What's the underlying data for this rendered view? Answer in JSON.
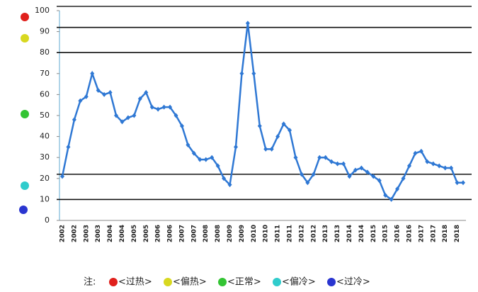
{
  "chart_data": {
    "type": "line",
    "categories": [
      "2002",
      null,
      "2002",
      null,
      "2003",
      null,
      "2003",
      null,
      "2004",
      null,
      "2004",
      null,
      "2005",
      null,
      "2005",
      null,
      "2006",
      null,
      "2006",
      null,
      "2007",
      null,
      "2007",
      null,
      "2008",
      null,
      "2008",
      null,
      "2009",
      null,
      "2009",
      null,
      "2010",
      null,
      "2010",
      null,
      "2011",
      null,
      "2011",
      null,
      "2012",
      null,
      "2012",
      null,
      "2013",
      null,
      "2013",
      null,
      "2014",
      null,
      "2014",
      null,
      "2015",
      null,
      "2015",
      null,
      "2016",
      null,
      "2016",
      null,
      "2017",
      null,
      "2017",
      null,
      "2018",
      null,
      "2018",
      null
    ],
    "values": [
      21,
      35,
      48,
      57,
      59,
      70,
      62,
      60,
      61,
      50,
      47,
      49,
      50,
      58,
      61,
      54,
      53,
      54,
      54,
      50,
      45,
      36,
      32,
      29,
      29,
      30,
      26,
      20,
      17,
      35,
      70,
      94,
      70,
      45,
      34,
      34,
      40,
      46,
      43,
      30,
      22,
      18,
      22,
      30,
      30,
      28,
      27,
      27,
      21,
      24,
      25,
      23,
      21,
      19,
      12,
      10,
      15,
      20,
      26,
      32,
      33,
      28,
      27,
      26,
      25,
      25,
      18,
      18
    ],
    "color": "#2f78d4",
    "ylim": [
      0,
      100
    ],
    "yticks": [
      0,
      10,
      20,
      30,
      40,
      50,
      60,
      70,
      80,
      90,
      100
    ],
    "thresholds": [
      92,
      80,
      22,
      10
    ],
    "legend_title": "注:",
    "legend": [
      {
        "name": "<过热>",
        "color": "#e0201c"
      },
      {
        "name": "<偏热>",
        "color": "#d8d820"
      },
      {
        "name": "<正常>",
        "color": "#33c433"
      },
      {
        "name": "<偏冷>",
        "color": "#30cccc"
      },
      {
        "name": "<过冷>",
        "color": "#2a35d0"
      }
    ]
  }
}
